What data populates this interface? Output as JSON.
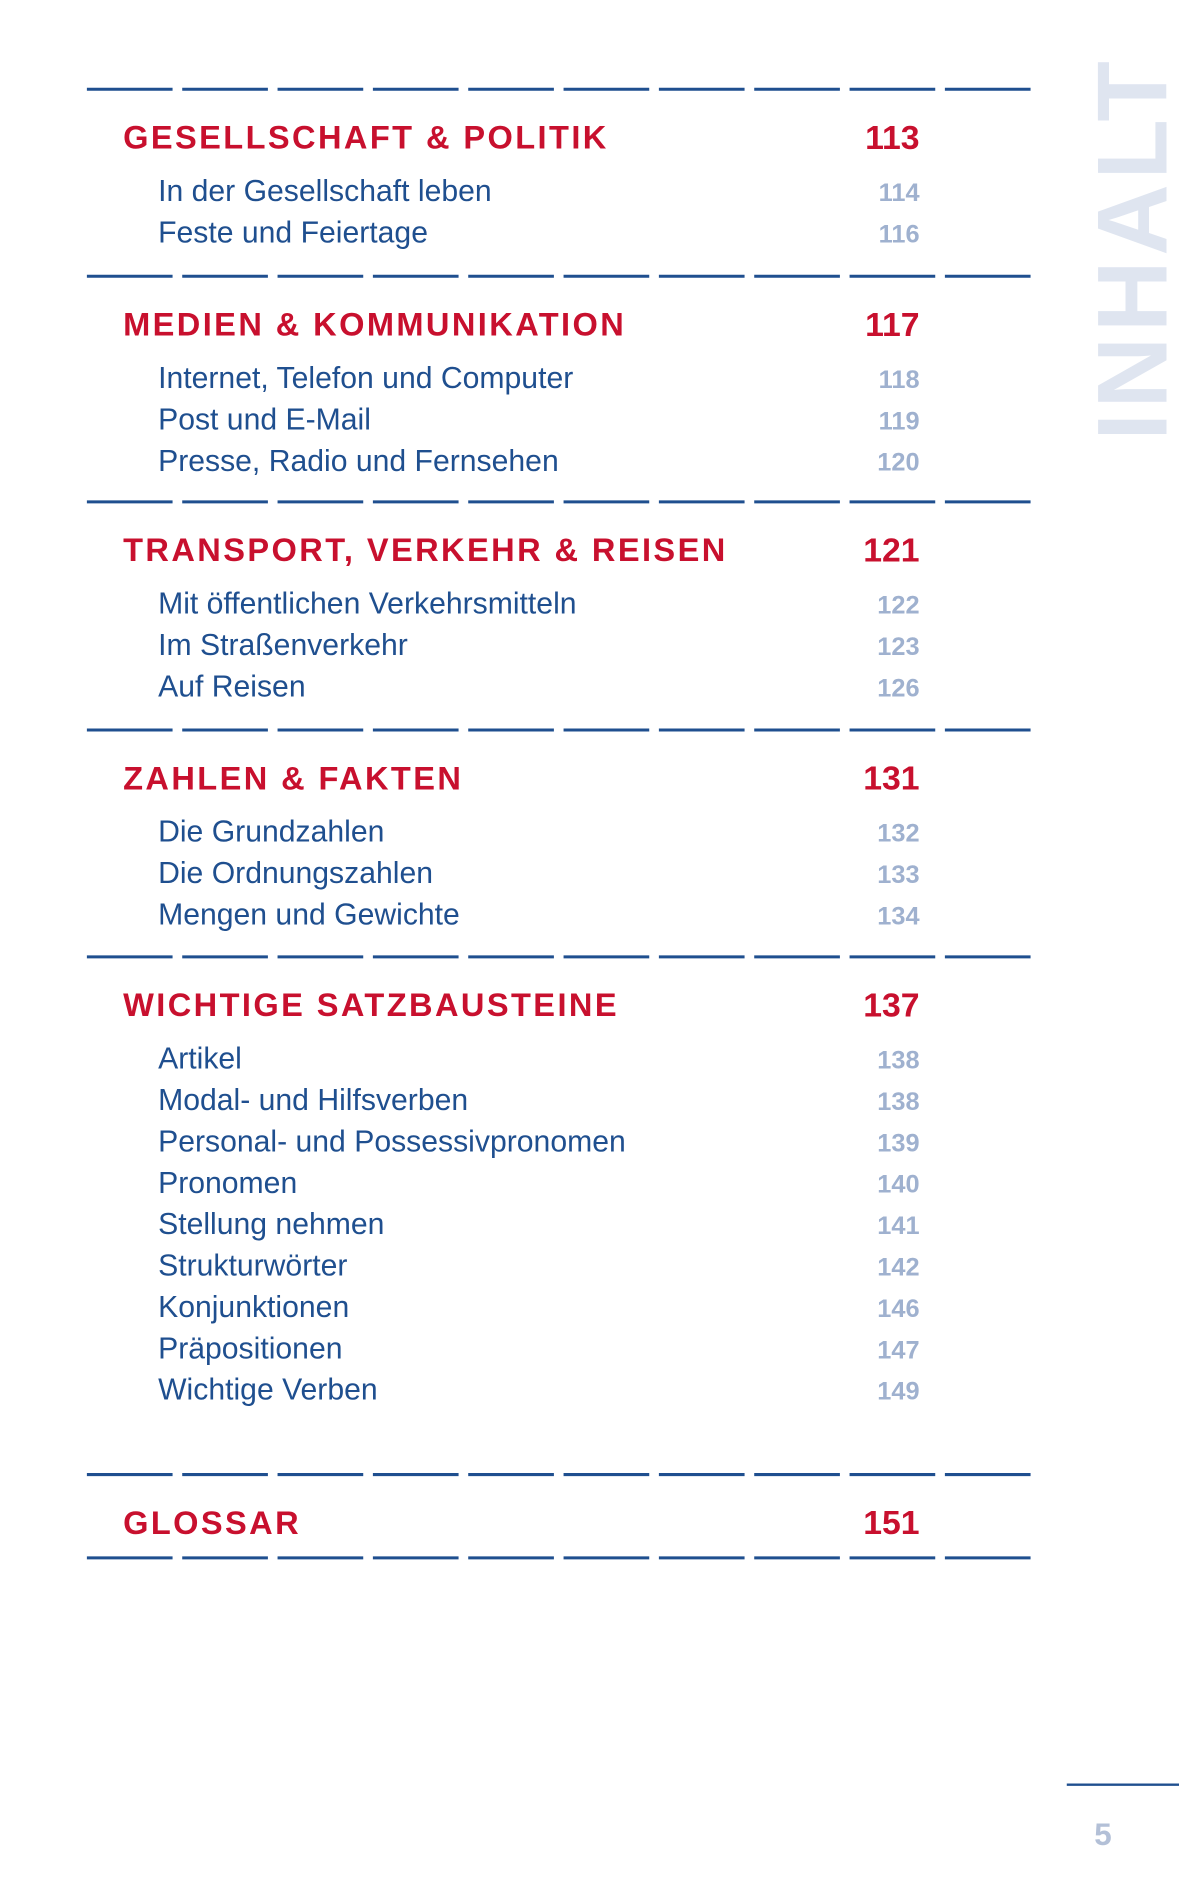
{
  "side_label": "INHALT",
  "page_number": 5,
  "sections": [
    {
      "title": "GESELLSCHAFT & POLITIK",
      "page": 113,
      "items": [
        {
          "label": "In der Gesellschaft leben",
          "page": 114
        },
        {
          "label": "Feste und Feiertage",
          "page": 116
        }
      ]
    },
    {
      "title": "MEDIEN & KOMMUNIKATION",
      "page": 117,
      "items": [
        {
          "label": "Internet, Telefon und Computer",
          "page": 118
        },
        {
          "label": "Post und E-Mail",
          "page": 119
        },
        {
          "label": "Presse, Radio und Fernsehen",
          "page": 120
        }
      ]
    },
    {
      "title": "TRANSPORT, VERKEHR & REISEN",
      "page": 121,
      "items": [
        {
          "label": "Mit öffentlichen Verkehrsmitteln",
          "page": 122
        },
        {
          "label": "Im Straßenverkehr",
          "page": 123
        },
        {
          "label": "Auf Reisen",
          "page": 126
        }
      ]
    },
    {
      "title": "ZAHLEN & FAKTEN",
      "page": 131,
      "items": [
        {
          "label": "Die Grundzahlen",
          "page": 132
        },
        {
          "label": "Die Ordnungszahlen",
          "page": 133
        },
        {
          "label": "Mengen und Gewichte",
          "page": 134
        }
      ]
    },
    {
      "title": "WICHTIGE SATZBAUSTEINE",
      "page": 137,
      "items": [
        {
          "label": "Artikel",
          "page": 138
        },
        {
          "label": "Modal- und Hilfsverben",
          "page": 138
        },
        {
          "label": "Personal- und Possessivpronomen",
          "page": 139
        },
        {
          "label": "Pronomen",
          "page": 140
        },
        {
          "label": "Stellung nehmen",
          "page": 141
        },
        {
          "label": "Strukturwörter",
          "page": 142
        },
        {
          "label": "Konjunktionen",
          "page": 146
        },
        {
          "label": "Präpositionen",
          "page": 147
        },
        {
          "label": "Wichtige Verben",
          "page": 149
        }
      ]
    },
    {
      "title": "GLOSSAR",
      "page": 151,
      "items": []
    }
  ]
}
